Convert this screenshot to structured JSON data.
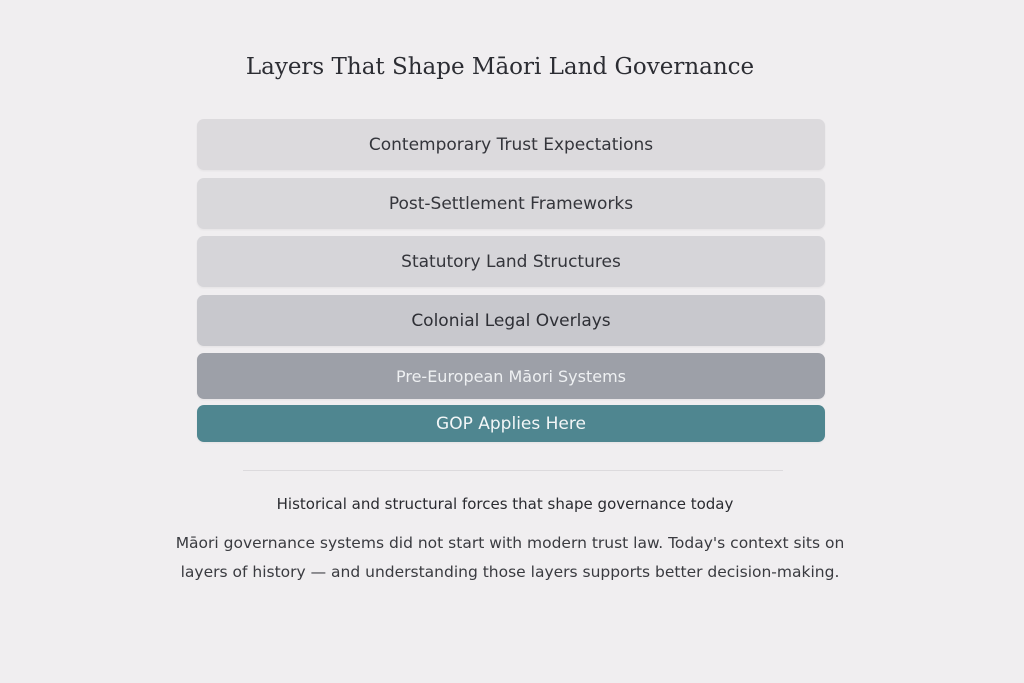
{
  "title": "Layers That Shape Māori Land Governance",
  "layers": [
    {
      "label": "Contemporary Trust Expectations",
      "color": "#dcdadd"
    },
    {
      "label": "Post-Settlement Frameworks",
      "color": "#d9d8db"
    },
    {
      "label": "Statutory Land Structures",
      "color": "#d6d5d9"
    },
    {
      "label": "Colonial Legal Overlays",
      "color": "#c8c8cd"
    },
    {
      "label": "Pre-European Māori Systems",
      "color": "#9da0a8"
    },
    {
      "label": "GOP Applies Here",
      "color": "#4f8690"
    }
  ],
  "subtitle": "Historical and structural forces that shape governance today",
  "paragraph": "Māori governance systems did not start with modern trust law. Today's context sits on layers of history — and understanding those layers supports better decision-making."
}
